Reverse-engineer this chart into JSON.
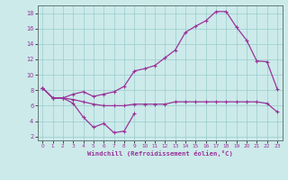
{
  "xlabel": "Windchill (Refroidissement éolien,°C)",
  "bg_color": "#cceaea",
  "line_color": "#993399",
  "grid_color": "#99cccc",
  "xlim": [
    -0.5,
    23.5
  ],
  "ylim": [
    1.5,
    19.0
  ],
  "yticks": [
    2,
    4,
    6,
    8,
    10,
    12,
    14,
    16,
    18
  ],
  "xticks": [
    0,
    1,
    2,
    3,
    4,
    5,
    6,
    7,
    8,
    9,
    10,
    11,
    12,
    13,
    14,
    15,
    16,
    17,
    18,
    19,
    20,
    21,
    22,
    23
  ],
  "line1_y": [
    8.3,
    7.0,
    7.0,
    6.3,
    4.5,
    3.2,
    3.7,
    2.5,
    2.7,
    5.0,
    null,
    null,
    null,
    null,
    null,
    null,
    null,
    null,
    null,
    null,
    null,
    null,
    null,
    null
  ],
  "line2_y": [
    8.3,
    7.0,
    7.0,
    6.8,
    6.5,
    6.2,
    6.0,
    6.0,
    6.0,
    6.2,
    6.2,
    6.2,
    6.2,
    6.5,
    6.5,
    6.5,
    6.5,
    6.5,
    6.5,
    6.5,
    6.5,
    6.5,
    6.3,
    5.2
  ],
  "line3_y": [
    8.3,
    7.0,
    7.0,
    7.5,
    7.8,
    7.2,
    7.5,
    7.8,
    8.5,
    10.5,
    10.8,
    11.2,
    12.2,
    13.2,
    15.5,
    16.3,
    17.0,
    18.2,
    18.2,
    16.2,
    14.5,
    11.8,
    11.7,
    8.2
  ]
}
